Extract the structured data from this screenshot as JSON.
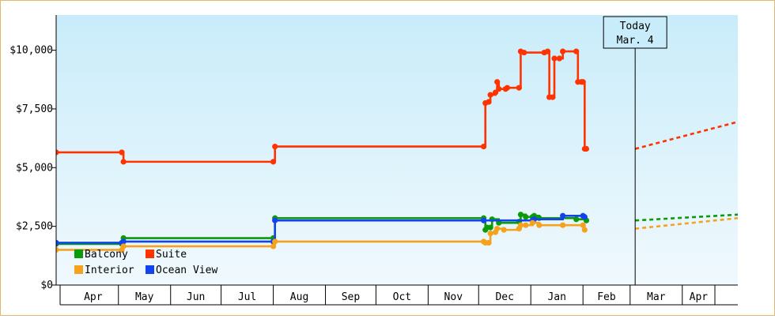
{
  "chart_data": {
    "type": "line",
    "title": "",
    "xlabel": "",
    "ylabel": "",
    "ylim": [
      0,
      11500
    ],
    "xlim": [
      "2024-03-25",
      "2025-05-04"
    ],
    "y_ticks": [
      {
        "value": 0,
        "label": "$0"
      },
      {
        "value": 2500,
        "label": "$2,500"
      },
      {
        "value": 5000,
        "label": "$5,000"
      },
      {
        "value": 7500,
        "label": "$7,500"
      },
      {
        "value": 10000,
        "label": "$10,000"
      }
    ],
    "x_month_labels": [
      "Apr",
      "May",
      "Jun",
      "Jul",
      "Aug",
      "Sep",
      "Oct",
      "Nov",
      "Dec",
      "Jan",
      "Feb",
      "Mar",
      "Apr"
    ],
    "x_month_starts": [
      "2024-04-01",
      "2024-05-01",
      "2024-06-01",
      "2024-07-01",
      "2024-08-01",
      "2024-09-01",
      "2024-10-01",
      "2024-11-01",
      "2024-12-01",
      "2025-01-01",
      "2025-02-01",
      "2025-03-01",
      "2025-04-01"
    ],
    "background_gradient": [
      "#c9ecfa",
      "#f0f9fd"
    ],
    "today": {
      "date": "2025-03-04",
      "line1": "Today",
      "line2": "Mar. 4"
    },
    "legend": {
      "placement": "bottom-left"
    },
    "series": [
      {
        "name": "Suite",
        "color": "#ff3300",
        "points": [
          [
            "2024-03-25",
            5650
          ],
          [
            "2024-05-03",
            5650
          ],
          [
            "2024-05-04",
            5250
          ],
          [
            "2024-08-01",
            5250
          ],
          [
            "2024-08-02",
            5900
          ],
          [
            "2024-12-04",
            5900
          ],
          [
            "2024-12-05",
            7750
          ],
          [
            "2024-12-07",
            7800
          ],
          [
            "2024-12-08",
            8100
          ],
          [
            "2024-12-11",
            8200
          ],
          [
            "2024-12-12",
            8650
          ],
          [
            "2024-12-13",
            8350
          ],
          [
            "2024-12-17",
            8350
          ],
          [
            "2024-12-18",
            8400
          ],
          [
            "2024-12-25",
            8400
          ],
          [
            "2024-12-26",
            9950
          ],
          [
            "2024-12-28",
            9900
          ],
          [
            "2025-01-09",
            9900
          ],
          [
            "2025-01-11",
            9950
          ],
          [
            "2025-01-12",
            8000
          ],
          [
            "2025-01-14",
            8000
          ],
          [
            "2025-01-15",
            9650
          ],
          [
            "2025-01-18",
            9650
          ],
          [
            "2025-01-20",
            9950
          ],
          [
            "2025-01-28",
            9950
          ],
          [
            "2025-01-29",
            8650
          ],
          [
            "2025-01-31",
            8650
          ],
          [
            "2025-02-01",
            8650
          ],
          [
            "2025-02-02",
            5800
          ],
          [
            "2025-02-03",
            5800
          ]
        ],
        "forecast": [
          [
            "2025-03-04",
            5800
          ],
          [
            "2025-05-04",
            6950
          ]
        ]
      },
      {
        "name": "Balcony",
        "color": "#0a9a0a",
        "points": [
          [
            "2024-03-25",
            1750
          ],
          [
            "2024-05-03",
            1750
          ],
          [
            "2024-05-04",
            2000
          ],
          [
            "2024-08-01",
            2000
          ],
          [
            "2024-08-02",
            2850
          ],
          [
            "2024-12-04",
            2850
          ],
          [
            "2024-12-05",
            2350
          ],
          [
            "2024-12-06",
            2450
          ],
          [
            "2024-12-08",
            2450
          ],
          [
            "2024-12-09",
            2800
          ],
          [
            "2024-12-13",
            2650
          ],
          [
            "2024-12-25",
            2700
          ],
          [
            "2024-12-26",
            3000
          ],
          [
            "2024-12-29",
            2900
          ],
          [
            "2025-01-02",
            2900
          ],
          [
            "2025-01-03",
            2950
          ],
          [
            "2025-01-06",
            2850
          ],
          [
            "2025-01-28",
            2800
          ],
          [
            "2025-02-03",
            2750
          ]
        ],
        "forecast": [
          [
            "2025-03-04",
            2750
          ],
          [
            "2025-05-04",
            3000
          ]
        ]
      },
      {
        "name": "Ocean View",
        "color": "#1144ee",
        "points": [
          [
            "2024-03-25",
            1800
          ],
          [
            "2024-05-03",
            1800
          ],
          [
            "2024-05-04",
            1850
          ],
          [
            "2024-08-01",
            1850
          ],
          [
            "2024-08-02",
            2750
          ],
          [
            "2024-12-04",
            2750
          ],
          [
            "2025-01-02",
            2750
          ],
          [
            "2025-01-03",
            2800
          ],
          [
            "2025-01-20",
            2950
          ],
          [
            "2025-02-01",
            2950
          ],
          [
            "2025-02-02",
            2900
          ]
        ],
        "forecast": []
      },
      {
        "name": "Interior",
        "color": "#f5a21e",
        "points": [
          [
            "2024-03-25",
            1500
          ],
          [
            "2024-05-03",
            1500
          ],
          [
            "2024-05-04",
            1650
          ],
          [
            "2024-08-01",
            1650
          ],
          [
            "2024-08-02",
            1850
          ],
          [
            "2024-12-04",
            1850
          ],
          [
            "2024-12-05",
            1800
          ],
          [
            "2024-12-07",
            1800
          ],
          [
            "2024-12-08",
            2200
          ],
          [
            "2024-12-11",
            2250
          ],
          [
            "2024-12-12",
            2400
          ],
          [
            "2024-12-16",
            2350
          ],
          [
            "2024-12-25",
            2400
          ],
          [
            "2024-12-26",
            2550
          ],
          [
            "2024-12-29",
            2550
          ],
          [
            "2025-01-02",
            2650
          ],
          [
            "2025-01-06",
            2550
          ],
          [
            "2025-01-20",
            2550
          ],
          [
            "2025-02-01",
            2550
          ],
          [
            "2025-02-02",
            2350
          ]
        ],
        "forecast": [
          [
            "2025-03-04",
            2400
          ],
          [
            "2025-05-04",
            2850
          ]
        ]
      }
    ]
  }
}
